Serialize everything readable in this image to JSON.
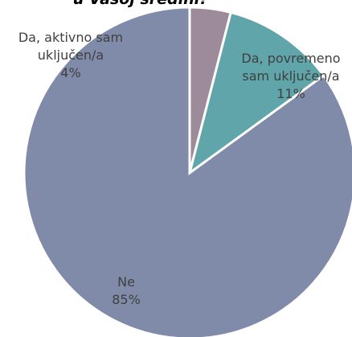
{
  "chart_data": {
    "type": "pie",
    "title": "u Vašoj sredini?",
    "categories": [
      "Da, aktivno sam uključen/a",
      "Da, povremeno sam uključen/a",
      "Ne"
    ],
    "values": [
      4,
      11,
      85
    ],
    "value_labels": [
      "4%",
      "11%",
      "85%"
    ],
    "colors": [
      "#9d8b9b",
      "#5fa5aa",
      "#7f8ba8"
    ]
  }
}
